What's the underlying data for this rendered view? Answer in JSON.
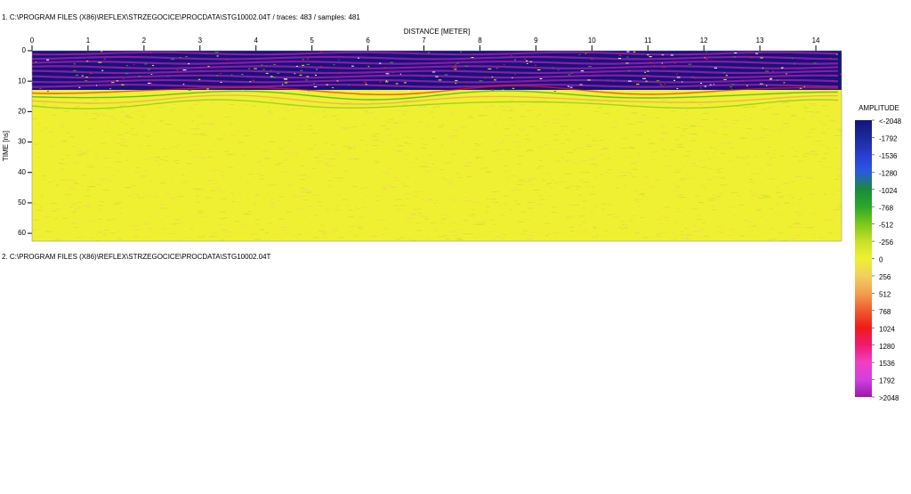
{
  "header": "1. C:\\PROGRAM FILES (X86)\\REFLEX\\STRZEGOCICE\\PROCDATA\\STG10002.04T / traces: 483 / samples: 481",
  "chart_data": {
    "type": "radargram",
    "x_label": "DISTANCE [METER]",
    "y_label": "TIME [ns]",
    "xlim": [
      0,
      14.46
    ],
    "xticks": [
      0,
      1,
      2,
      3,
      4,
      5,
      6,
      7,
      8,
      9,
      10,
      11,
      12,
      13,
      14
    ],
    "ylim": [
      0,
      62.6
    ],
    "yticks": [
      0,
      10,
      20,
      30,
      40,
      50,
      60
    ],
    "colorbar": {
      "label": "AMPLITUDE",
      "ticks": [
        {
          "value": -2048,
          "label": "<-2048"
        },
        -1792,
        -1536,
        -1280,
        -1024,
        -768,
        -512,
        -256,
        0,
        256,
        512,
        768,
        1024,
        1280,
        1536,
        1792,
        {
          "value": 2048,
          "label": ">2048"
        }
      ],
      "colors": [
        "#14147a",
        "#1a2a9a",
        "#2a3cd0",
        "#2a5ae0",
        "#1a8a3a",
        "#2aa82a",
        "#7cc81a",
        "#c8e02a",
        "#f0f032",
        "#f0d060",
        "#f0a050",
        "#f05a30",
        "#f01a1a",
        "#f01a70",
        "#f040c0",
        "#d040e0",
        "#9a1aa8"
      ]
    }
  },
  "footer": "2. C:\\PROGRAM FILES (X86)\\REFLEX\\STRZEGOCICE\\PROCDATA\\STG10002.04T"
}
